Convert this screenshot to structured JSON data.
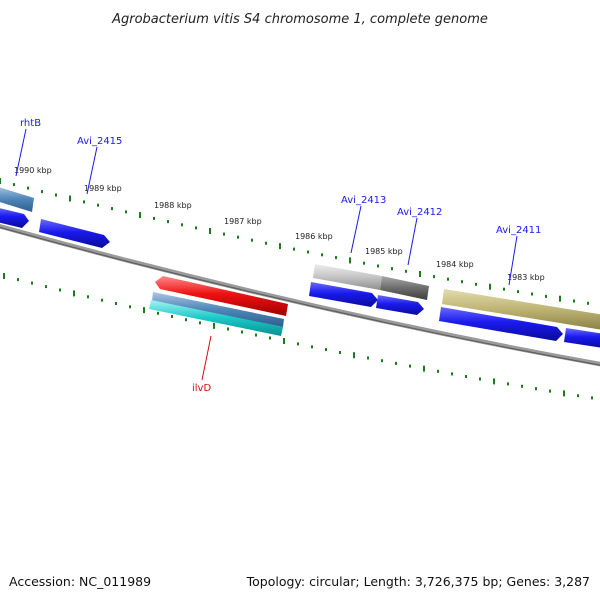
{
  "title": "Agrobacterium vitis S4 chromosome 1, complete genome",
  "accession_text": "Accession: NC_011989",
  "summary_text": "Topology: circular; Length: 3,726,375 bp; Genes: 3,287",
  "colors": {
    "backbone": "#7a7a7a",
    "ticks": "#1f7a1f",
    "cds_forward": "#1a1aee",
    "cds_reverse": "#1a1aee",
    "label_blue": "#1a1aee",
    "label_red": "#cc1111",
    "ilvD_gene": "#ee1111",
    "rhtB_gene": "#4f86b8",
    "reverse_feature_a": "#4f86b8",
    "reverse_feature_b": "#19c9c9",
    "Avi_2413_gene": "#c4c4c4",
    "Avi_2412_gene": "#6d6d6d",
    "Avi_2411_gene": "#bdb373"
  },
  "kbp_labels": [
    "1990 kbp",
    "1989 kbp",
    "1988 kbp",
    "1987 kbp",
    "1986 kbp",
    "1985 kbp",
    "1984 kbp",
    "1983 kbp"
  ],
  "gene_labels": {
    "rhtB": "rhtB",
    "Avi_2415": "Avi_2415",
    "Avi_2413": "Avi_2413",
    "Avi_2412": "Avi_2412",
    "Avi_2411": "Avi_2411",
    "ilvD": "ilvD"
  }
}
